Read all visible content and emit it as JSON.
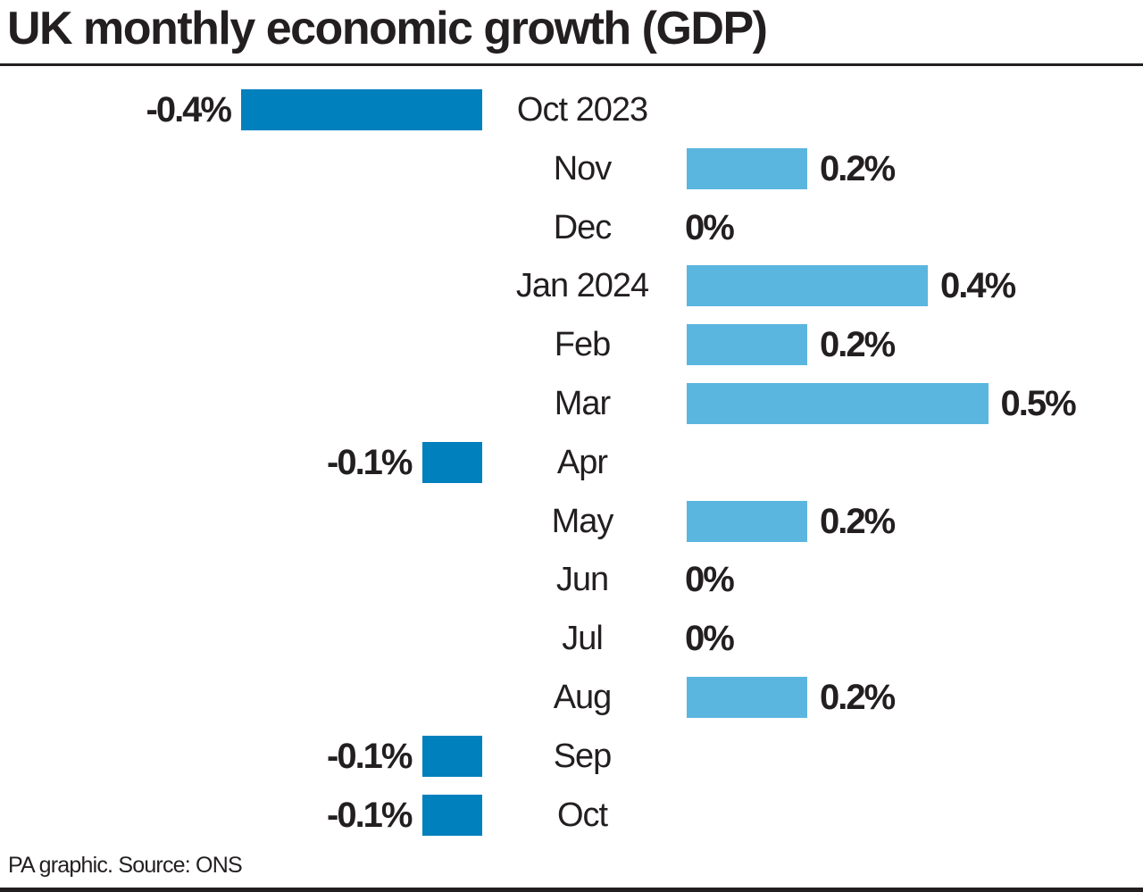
{
  "title": "UK monthly economic growth (GDP)",
  "source": "PA graphic. Source: ONS",
  "colors": {
    "negative": "#0080bd",
    "positive": "#5bb6df",
    "text": "#231f20"
  },
  "chart_data": {
    "type": "bar",
    "orientation": "horizontal",
    "title": "UK monthly economic growth (GDP)",
    "categories": [
      "Oct 2023",
      "Nov",
      "Dec",
      "Jan 2024",
      "Feb",
      "Mar",
      "Apr",
      "May",
      "Jun",
      "Jul",
      "Aug",
      "Sep",
      "Oct"
    ],
    "values": [
      -0.4,
      0.2,
      0,
      0.4,
      0.2,
      0.5,
      -0.1,
      0.2,
      0,
      0,
      0.2,
      -0.1,
      -0.1
    ],
    "labels": [
      "-0.4%",
      "0.2%",
      "0%",
      "0.4%",
      "0.2%",
      "0.5%",
      "-0.1%",
      "0.2%",
      "0%",
      "0%",
      "0.2%",
      "-0.1%",
      "-0.1%"
    ],
    "unit": "%",
    "grid": false,
    "legend": "none"
  }
}
